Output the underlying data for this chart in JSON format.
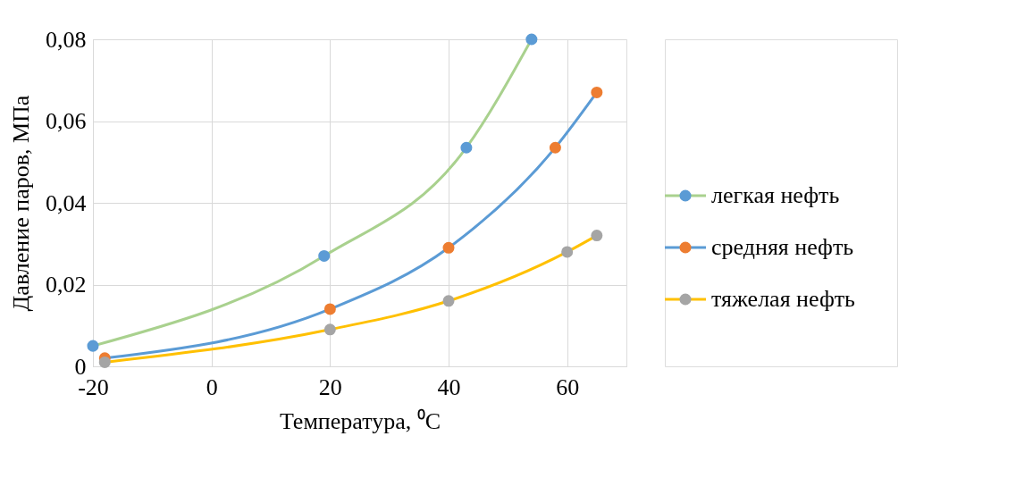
{
  "chart_data": {
    "type": "line",
    "xlabel": "Температура, ⁰C",
    "ylabel": "Давление паров, МПа",
    "xlim": [
      -20,
      70
    ],
    "xticks": [
      -20,
      0,
      20,
      40,
      60
    ],
    "ylim": [
      0,
      0.08
    ],
    "yticks": [
      0,
      {
        "value": 0.02,
        "label": "0,02"
      },
      {
        "value": 0.04,
        "label": "0,04"
      },
      {
        "value": 0.06,
        "label": "0,06"
      },
      {
        "value": 0.08,
        "label": "0,08"
      }
    ],
    "grid": true,
    "legend": "right",
    "marker": "circle",
    "line_style": "solid",
    "series": [
      {
        "name": "легкая нефть",
        "color": "#a9d18e",
        "colors": [
          "#5b9bd5",
          "#5b9bd5",
          "#5b9bd5",
          "#5b9bd5"
        ],
        "x": [
          -20,
          19,
          43,
          54
        ],
        "values": [
          0.005,
          0.027,
          0.0535,
          0.08
        ]
      },
      {
        "name": "средняя нефть",
        "color": "#5b9bd5",
        "colors": [
          "#ed7d31",
          "#ed7d31",
          "#ed7d31",
          "#ed7d31",
          "#ed7d31"
        ],
        "x": [
          -18,
          20,
          40,
          58,
          65
        ],
        "values": [
          0.002,
          0.014,
          0.029,
          0.0535,
          0.067
        ]
      },
      {
        "name": "тяжелая нефть",
        "color": "#ffc000",
        "colors": [
          "#a5a5a5",
          "#a5a5a5",
          "#a5a5a5",
          "#a5a5a5",
          "#a5a5a5"
        ],
        "x": [
          -18,
          20,
          40,
          60,
          65
        ],
        "values": [
          0.001,
          0.009,
          0.016,
          0.028,
          0.032
        ]
      }
    ]
  }
}
